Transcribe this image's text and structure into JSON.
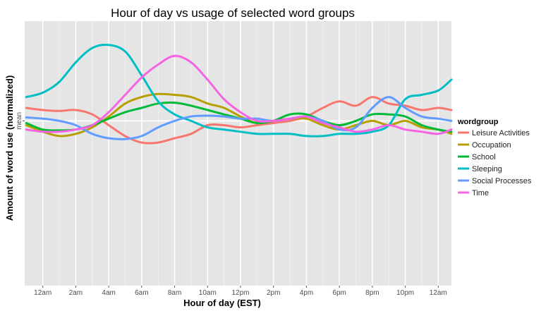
{
  "chart_data": {
    "type": "line",
    "title": "Hour of day vs usage of selected word groups",
    "xlabel": "Hour of day (EST)",
    "ylabel": "Amount of word use (normalized)",
    "y_tick_labels": [
      "mean"
    ],
    "x_tick_labels": [
      "12am",
      "2am",
      "4am",
      "6am",
      "8am",
      "10am",
      "12pm",
      "2pm",
      "4pm",
      "6pm",
      "8pm",
      "10pm",
      "12am"
    ],
    "x_tick_values": [
      0,
      2,
      4,
      6,
      8,
      10,
      12,
      14,
      16,
      18,
      20,
      22,
      24
    ],
    "xlim": [
      -1.1,
      24.8
    ],
    "ylim": [
      -3.8,
      2.3
    ],
    "grid": true,
    "legend": {
      "title": "wordgroup",
      "position": "right"
    },
    "series": [
      {
        "name": "Leisure Activities",
        "color": "#F8766D",
        "x": [
          -1,
          0,
          1,
          2,
          3,
          4,
          5,
          6,
          7,
          8,
          9,
          10,
          11,
          12,
          13,
          14,
          15,
          16,
          17,
          18,
          19,
          20,
          21,
          22,
          23,
          24,
          24.8
        ],
        "y": [
          0.3,
          0.25,
          0.23,
          0.25,
          0.15,
          -0.1,
          -0.35,
          -0.5,
          -0.5,
          -0.4,
          -0.3,
          -0.1,
          -0.1,
          -0.15,
          -0.1,
          -0.05,
          0.0,
          0.1,
          0.3,
          0.45,
          0.35,
          0.55,
          0.4,
          0.35,
          0.25,
          0.3,
          0.25
        ]
      },
      {
        "name": "Occupation",
        "color": "#B79F00",
        "x": [
          -1,
          0,
          1,
          2,
          3,
          4,
          5,
          6,
          7,
          8,
          9,
          10,
          11,
          12,
          13,
          14,
          15,
          16,
          17,
          18,
          19,
          20,
          21,
          22,
          23,
          24,
          24.8
        ],
        "y": [
          -0.1,
          -0.25,
          -0.35,
          -0.3,
          -0.15,
          0.1,
          0.4,
          0.55,
          0.62,
          0.6,
          0.55,
          0.4,
          0.3,
          0.1,
          -0.05,
          0.0,
          0.05,
          0.05,
          -0.1,
          -0.2,
          -0.1,
          0.0,
          -0.1,
          0.0,
          -0.15,
          -0.2,
          -0.3
        ]
      },
      {
        "name": "School",
        "color": "#00BA38",
        "x": [
          -1,
          0,
          1,
          2,
          3,
          4,
          5,
          6,
          7,
          8,
          9,
          10,
          11,
          12,
          13,
          14,
          15,
          16,
          17,
          18,
          19,
          20,
          21,
          22,
          23,
          24,
          24.8
        ],
        "y": [
          -0.05,
          -0.2,
          -0.22,
          -0.2,
          -0.1,
          0.05,
          0.2,
          0.3,
          0.4,
          0.42,
          0.35,
          0.25,
          0.15,
          0.05,
          -0.05,
          0.0,
          0.15,
          0.15,
          0.0,
          -0.1,
          0.0,
          0.15,
          0.15,
          0.1,
          -0.1,
          -0.2,
          -0.25
        ]
      },
      {
        "name": "Sleeping",
        "color": "#00BFC4",
        "x": [
          -1,
          0,
          1,
          2,
          3,
          4,
          5,
          6,
          7,
          8,
          9,
          10,
          11,
          12,
          13,
          14,
          15,
          16,
          17,
          18,
          19,
          20,
          21,
          22,
          23,
          24,
          24.8
        ],
        "y": [
          0.55,
          0.65,
          0.9,
          1.35,
          1.68,
          1.75,
          1.6,
          1.05,
          0.45,
          0.15,
          0.0,
          -0.15,
          -0.2,
          -0.25,
          -0.3,
          -0.3,
          -0.3,
          -0.35,
          -0.35,
          -0.3,
          -0.3,
          -0.25,
          -0.1,
          0.5,
          0.6,
          0.7,
          0.95
        ]
      },
      {
        "name": "Social Processes",
        "color": "#619CFF",
        "x": [
          -1,
          0,
          1,
          2,
          3,
          4,
          5,
          6,
          7,
          8,
          9,
          10,
          11,
          12,
          13,
          14,
          15,
          16,
          17,
          18,
          19,
          20,
          21,
          22,
          23,
          24,
          24.8
        ],
        "y": [
          0.08,
          0.05,
          0.0,
          -0.1,
          -0.3,
          -0.4,
          -0.42,
          -0.35,
          -0.15,
          0.0,
          0.1,
          0.12,
          0.1,
          0.05,
          0.05,
          0.0,
          0.05,
          0.1,
          0.0,
          -0.2,
          -0.15,
          0.3,
          0.55,
          0.3,
          0.1,
          0.05,
          0.0
        ]
      },
      {
        "name": "Time",
        "color": "#F564E3",
        "x": [
          -1,
          0,
          1,
          2,
          3,
          4,
          5,
          6,
          7,
          8,
          9,
          10,
          11,
          12,
          13,
          14,
          15,
          16,
          17,
          18,
          19,
          20,
          21,
          22,
          23,
          24,
          24.8
        ],
        "y": [
          -0.2,
          -0.25,
          -0.25,
          -0.2,
          -0.1,
          0.2,
          0.6,
          1.0,
          1.3,
          1.5,
          1.35,
          0.95,
          0.5,
          0.2,
          0.0,
          0.0,
          0.05,
          0.1,
          -0.05,
          -0.15,
          -0.25,
          -0.2,
          -0.1,
          -0.2,
          -0.25,
          -0.3,
          -0.2
        ]
      }
    ]
  }
}
